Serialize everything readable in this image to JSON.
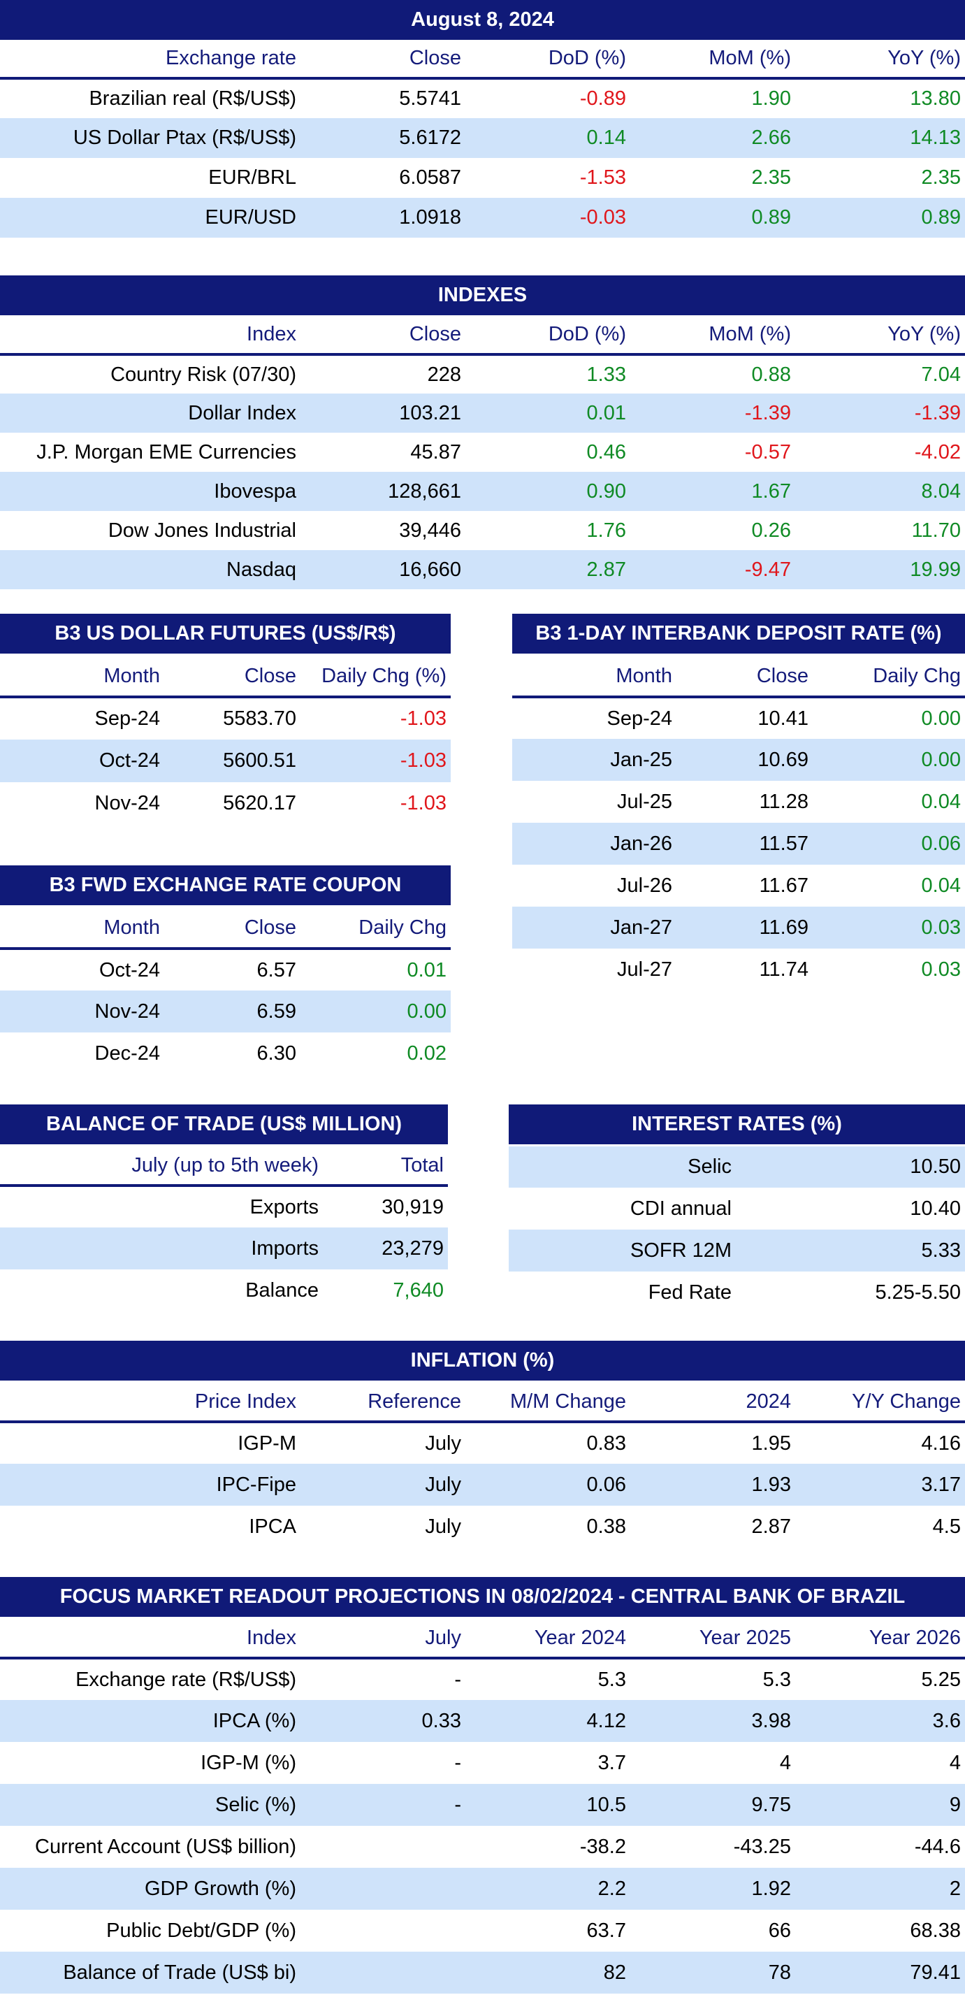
{
  "exchange": {
    "title": "August 8, 2024",
    "headers": [
      "Exchange rate",
      "Close",
      "DoD (%)",
      "MoM (%)",
      "YoY (%)"
    ],
    "rows": [
      {
        "label": "Brazilian real (R$/US$)",
        "close": "5.5741",
        "dod": "-0.89",
        "mom": "1.90",
        "yoy": "13.80"
      },
      {
        "label": "US Dollar Ptax (R$/US$)",
        "close": "5.6172",
        "dod": "0.14",
        "mom": "2.66",
        "yoy": "14.13"
      },
      {
        "label": "EUR/BRL",
        "close": "6.0587",
        "dod": "-1.53",
        "mom": "2.35",
        "yoy": "2.35"
      },
      {
        "label": "EUR/USD",
        "close": "1.0918",
        "dod": "-0.03",
        "mom": "0.89",
        "yoy": "0.89"
      }
    ]
  },
  "indexes": {
    "title": "INDEXES",
    "headers": [
      "Index",
      "Close",
      "DoD (%)",
      "MoM (%)",
      "YoY (%)"
    ],
    "rows": [
      {
        "label": "Country Risk (07/30)",
        "close": "228",
        "dod": "1.33",
        "mom": "0.88",
        "yoy": "7.04"
      },
      {
        "label": "Dollar Index",
        "close": "103.21",
        "dod": "0.01",
        "mom": "-1.39",
        "yoy": "-1.39"
      },
      {
        "label": "J.P. Morgan EME Currencies",
        "close": "45.87",
        "dod": "0.46",
        "mom": "-0.57",
        "yoy": "-4.02"
      },
      {
        "label": "Ibovespa",
        "close": "128,661",
        "dod": "0.90",
        "mom": "1.67",
        "yoy": "8.04"
      },
      {
        "label": "Dow Jones Industrial",
        "close": "39,446",
        "dod": "1.76",
        "mom": "0.26",
        "yoy": "11.70"
      },
      {
        "label": "Nasdaq",
        "close": "16,660",
        "dod": "2.87",
        "mom": "-9.47",
        "yoy": "19.99"
      }
    ]
  },
  "futures": {
    "title": "B3 US DOLLAR FUTURES (US$/R$)",
    "headers": [
      "Month",
      "Close",
      "Daily Chg (%)"
    ],
    "rows": [
      {
        "label": "Sep-24",
        "close": "5583.70",
        "chg": "-1.03"
      },
      {
        "label": "Oct-24",
        "close": "5600.51",
        "chg": "-1.03"
      },
      {
        "label": "Nov-24",
        "close": "5620.17",
        "chg": "-1.03"
      }
    ]
  },
  "interbank": {
    "title": "B3 1-DAY INTERBANK DEPOSIT RATE (%)",
    "headers": [
      "Month",
      "Close",
      "Daily Chg"
    ],
    "rows": [
      {
        "label": "Sep-24",
        "close": "10.41",
        "chg": "0.00"
      },
      {
        "label": "Jan-25",
        "close": "10.69",
        "chg": "0.00"
      },
      {
        "label": "Jul-25",
        "close": "11.28",
        "chg": "0.04"
      },
      {
        "label": "Jan-26",
        "close": "11.57",
        "chg": "0.06"
      },
      {
        "label": "Jul-26",
        "close": "11.67",
        "chg": "0.04"
      },
      {
        "label": "Jan-27",
        "close": "11.69",
        "chg": "0.03"
      },
      {
        "label": "Jul-27",
        "close": "11.74",
        "chg": "0.03"
      }
    ]
  },
  "coupon": {
    "title": "B3 FWD EXCHANGE RATE COUPON",
    "headers": [
      "Month",
      "Close",
      "Daily Chg"
    ],
    "rows": [
      {
        "label": "Oct-24",
        "close": "6.57",
        "chg": "0.01"
      },
      {
        "label": "Nov-24",
        "close": "6.59",
        "chg": "0.00"
      },
      {
        "label": "Dec-24",
        "close": "6.30",
        "chg": "0.02"
      }
    ]
  },
  "trade": {
    "title": "BALANCE OF TRADE (US$ MILLION)",
    "headers": [
      "July (up to 5th week)",
      "Total"
    ],
    "rows": [
      {
        "label": "Exports",
        "total": "30,919"
      },
      {
        "label": "Imports",
        "total": "23,279"
      },
      {
        "label": "Balance",
        "total": "7,640"
      }
    ]
  },
  "rates": {
    "title": "INTEREST RATES (%)",
    "rows": [
      {
        "label": "Selic",
        "value": "10.50"
      },
      {
        "label": "CDI annual",
        "value": "10.40"
      },
      {
        "label": "SOFR 12M",
        "value": "5.33"
      },
      {
        "label": "Fed Rate",
        "value": "5.25-5.50"
      }
    ]
  },
  "inflation": {
    "title": "INFLATION (%)",
    "headers": [
      "Price Index",
      "Reference",
      "M/M Change",
      "2024",
      "Y/Y Change"
    ],
    "rows": [
      {
        "label": "IGP-M",
        "ref": "July",
        "mm": "0.83",
        "y2024": "1.95",
        "yy": "4.16"
      },
      {
        "label": "IPC-Fipe",
        "ref": "July",
        "mm": "0.06",
        "y2024": "1.93",
        "yy": "3.17"
      },
      {
        "label": "IPCA",
        "ref": "July",
        "mm": "0.38",
        "y2024": "2.87",
        "yy": "4.5"
      }
    ]
  },
  "focus": {
    "title": "FOCUS MARKET READOUT PROJECTIONS IN 08/02/2024 - CENTRAL BANK OF BRAZIL",
    "headers": [
      "Index",
      "July",
      "Year 2024",
      "Year 2025",
      "Year 2026"
    ],
    "rows": [
      {
        "label": "Exchange rate (R$/US$)",
        "july": "-",
        "y2024": "5.3",
        "y2025": "5.3",
        "y2026": "5.25"
      },
      {
        "label": "IPCA (%)",
        "july": "0.33",
        "y2024": "4.12",
        "y2025": "3.98",
        "y2026": "3.6"
      },
      {
        "label": "IGP-M (%)",
        "july": "-",
        "y2024": "3.7",
        "y2025": "4",
        "y2026": "4"
      },
      {
        "label": "Selic (%)",
        "july": "-",
        "y2024": "10.5",
        "y2025": "9.75",
        "y2026": "9"
      },
      {
        "label": "Current Account (US$ billion)",
        "july": "",
        "y2024": "-38.2",
        "y2025": "-43.25",
        "y2026": "-44.6"
      },
      {
        "label": "GDP Growth (%)",
        "july": "",
        "y2024": "2.2",
        "y2025": "1.92",
        "y2026": "2"
      },
      {
        "label": "Public Debt/GDP (%)",
        "july": "",
        "y2024": "63.7",
        "y2025": "66",
        "y2026": "68.38"
      },
      {
        "label": "Balance of Trade (US$ bi)",
        "july": "",
        "y2024": "82",
        "y2025": "78",
        "y2026": "79.41"
      }
    ]
  },
  "colors": {
    "header_bg": "#101a78",
    "shade": "#cfe3fa",
    "negative": "#e0161b",
    "positive": "#0f8a24"
  }
}
